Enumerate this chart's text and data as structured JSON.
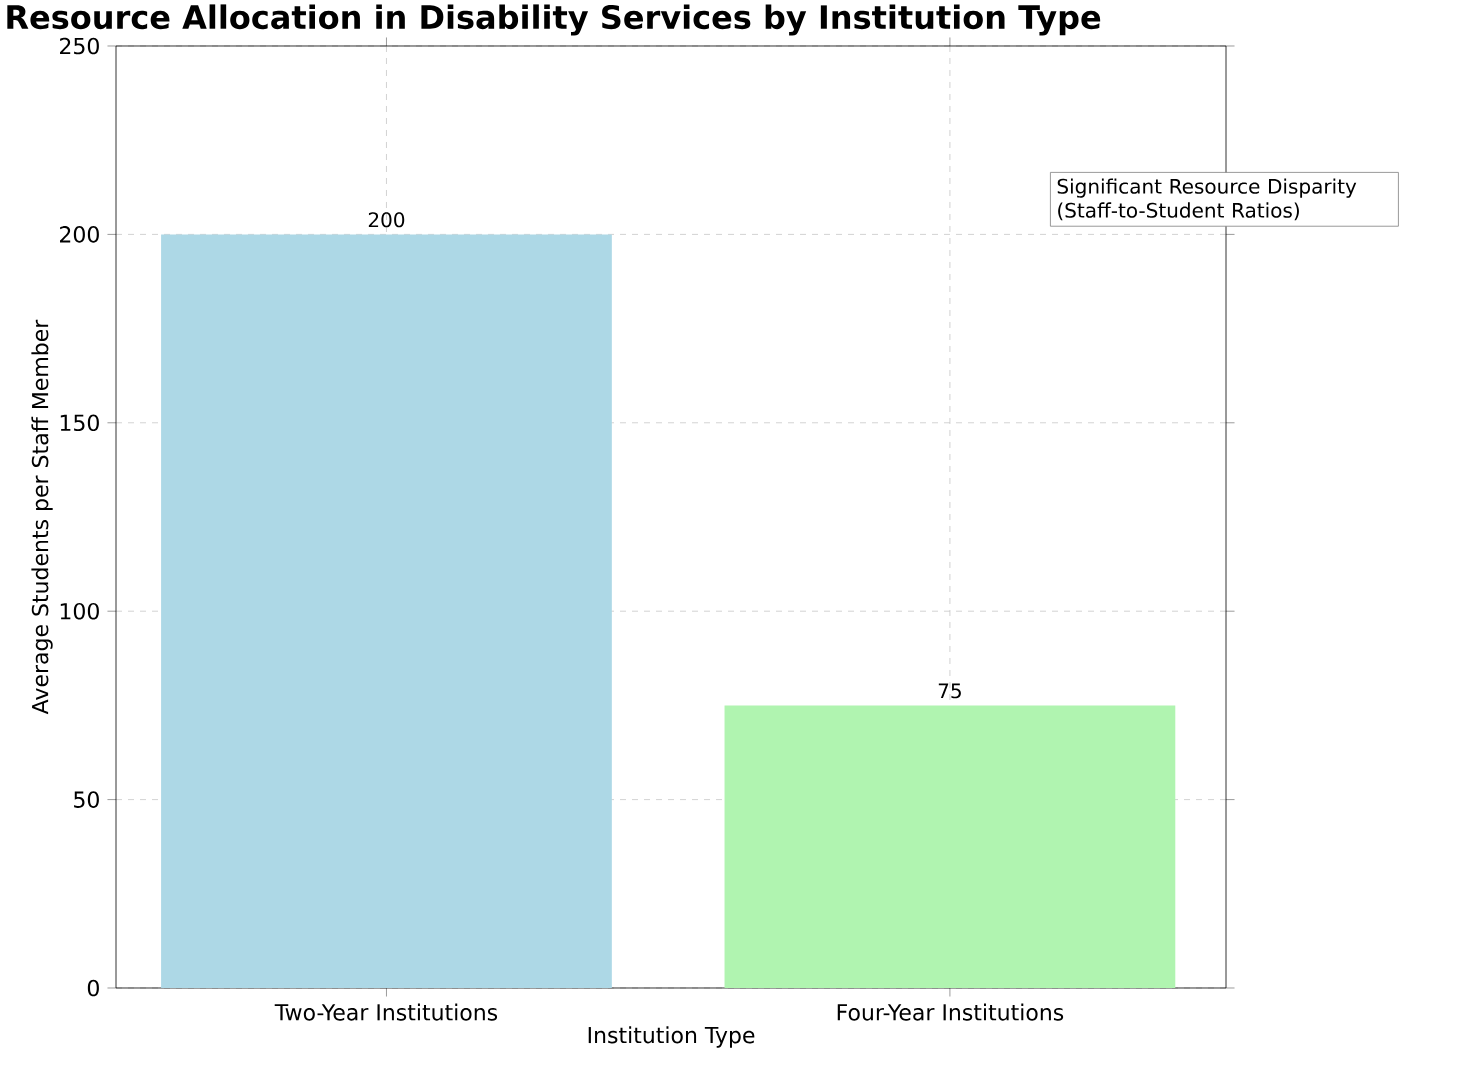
{
  "chart_data": {
    "type": "bar",
    "title": "Resource Allocation in Disability Services by Institution Type",
    "xlabel": "Institution Type",
    "ylabel": "Average Students per Staff Member",
    "categories": [
      "Two-Year Institutions",
      "Four-Year Institutions"
    ],
    "values": [
      200,
      75
    ],
    "colors": [
      "#add8e6",
      "#b0f4b0"
    ],
    "ylim": [
      0,
      250
    ],
    "yticks": [
      0,
      50,
      100,
      150,
      200,
      250
    ],
    "grid": true,
    "data_labels": true,
    "annotations": [
      "Significant Resource Disparity (Staff-to-Student Ratios)"
    ]
  }
}
